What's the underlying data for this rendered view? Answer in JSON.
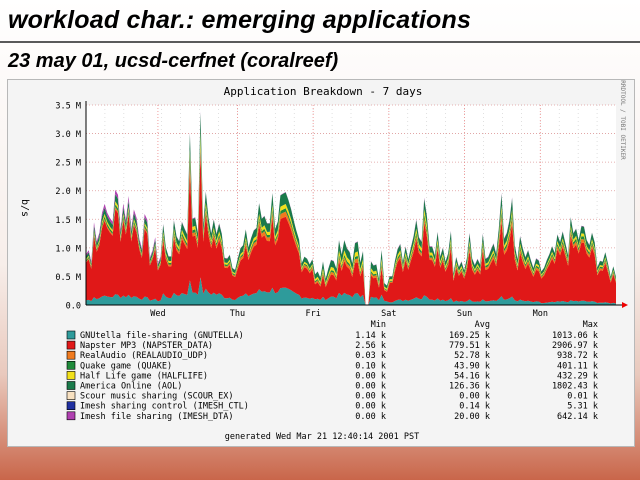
{
  "slide": {
    "title": "workload char.: emerging applications",
    "subtitle": "23 may 01, ucsd-cerfnet (coralreef)"
  },
  "chart_data": {
    "type": "area",
    "stacked": true,
    "title": "Application Breakdown - 7 days",
    "ylabel": "b/s",
    "side_label": "RRDTOOL / TOBI OETIKER",
    "ylim": [
      0,
      3500000
    ],
    "y_ticks": [
      {
        "value": 0,
        "label": "0.0"
      },
      {
        "value": 500000,
        "label": "0.5 M"
      },
      {
        "value": 1000000,
        "label": "1.0 M"
      },
      {
        "value": 1500000,
        "label": "1.5 M"
      },
      {
        "value": 2000000,
        "label": "2.0 M"
      },
      {
        "value": 2500000,
        "label": "2.5 M"
      },
      {
        "value": 3000000,
        "label": "3.0 M"
      },
      {
        "value": 3500000,
        "label": "3.5 M"
      }
    ],
    "x_ticks": [
      {
        "label": "Wed",
        "day": 0.95
      },
      {
        "label": "Thu",
        "day": 2.0
      },
      {
        "label": "Fri",
        "day": 3.0
      },
      {
        "label": "Sat",
        "day": 4.0
      },
      {
        "label": "Sun",
        "day": 5.0
      },
      {
        "label": "Mon",
        "day": 6.0
      }
    ],
    "x_range_days": [
      0,
      7
    ],
    "grid": true,
    "stats_headers": {
      "min": "Min",
      "avg": "Avg",
      "max": "Max"
    },
    "series": [
      {
        "name": "GNUtella file-sharing (GNUTELLA)",
        "color": "#2e9b9b",
        "min": "1.14 k",
        "avg": "169.25 k",
        "max": "1013.06 k",
        "avg_value": 169250,
        "profile": [
          150000,
          220000,
          240000,
          160000,
          110000,
          90000,
          60000
        ]
      },
      {
        "name": "Napster MP3 (NAPSTER_DATA)",
        "color": "#e01818",
        "min": "2.56 k",
        "avg": "779.51 k",
        "max": "2906.97 k",
        "avg_value": 779510,
        "profile": [
          1200000,
          1000000,
          980000,
          420000,
          820000,
          780000,
          820000
        ]
      },
      {
        "name": "RealAudio (REALAUDIO_UDP)",
        "color": "#f07a1e",
        "min": "0.03 k",
        "avg": "52.78 k",
        "max": "938.72 k",
        "avg_value": 52780,
        "profile": [
          30000,
          60000,
          70000,
          50000,
          50000,
          60000,
          50000
        ]
      },
      {
        "name": "Quake game (QUAKE)",
        "color": "#1f8a3a",
        "min": "0.10 k",
        "avg": "43.90 k",
        "max": "401.11 k",
        "avg_value": 43900,
        "profile": [
          40000,
          50000,
          45000,
          35000,
          45000,
          45000,
          40000
        ]
      },
      {
        "name": "Half Life game (HALFLIFE)",
        "color": "#f2e01a",
        "min": "0.00 k",
        "avg": "54.16 k",
        "max": "432.29 k",
        "avg_value": 54160,
        "profile": [
          40000,
          60000,
          60000,
          60000,
          60000,
          50000,
          40000
        ]
      },
      {
        "name": "America Online (AOL)",
        "color": "#1a7a4a",
        "min": "0.00 k",
        "avg": "126.36 k",
        "max": "1802.43 k",
        "avg_value": 126360,
        "profile": [
          100000,
          140000,
          160000,
          130000,
          120000,
          120000,
          100000
        ]
      },
      {
        "name": "Scour music sharing (SCOUR_EX)",
        "color": "#f7e0c0",
        "min": "0.00 k",
        "avg": "0.00 k",
        "max": "0.01 k",
        "avg_value": 0,
        "profile": [
          0,
          0,
          0,
          0,
          0,
          0,
          0
        ]
      },
      {
        "name": "Imesh sharing control (IMESH_CTL)",
        "color": "#2030a0",
        "min": "0.00 k",
        "avg": "0.14 k",
        "max": "5.31 k",
        "avg_value": 140,
        "profile": [
          150,
          150,
          150,
          150,
          150,
          150,
          150
        ]
      },
      {
        "name": "Imesh file sharing (IMESH_DTA)",
        "color": "#b040b0",
        "min": "0.00 k",
        "avg": "20.00 k",
        "max": "642.14 k",
        "avg_value": 20000,
        "profile": [
          60000,
          10000,
          5000,
          5000,
          10000,
          10000,
          5000
        ]
      }
    ],
    "footer": "generated Wed Mar 21 12:40:14 2001 PST"
  }
}
